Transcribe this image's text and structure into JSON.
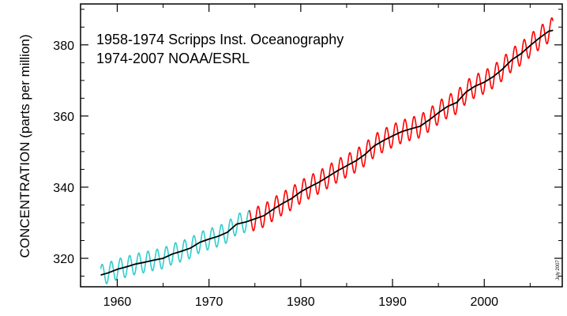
{
  "chart_data": {
    "type": "line",
    "ylabel": "CONCENTRATION (parts per million)",
    "xlabel": "",
    "xlim": [
      1956,
      2008.5
    ],
    "ylim": [
      312,
      391.5
    ],
    "x_ticks": [
      1960,
      1970,
      1980,
      1990,
      2000
    ],
    "x_tick_labels": [
      "1960",
      "1970",
      "1980",
      "1990",
      "2000"
    ],
    "y_ticks": [
      320,
      340,
      360,
      380
    ],
    "y_tick_labels": [
      "320",
      "340",
      "360",
      "380"
    ],
    "annotations": [
      "1958-1974 Scripps Inst. Oceanography",
      "1974-2007 NOAA/ESRL"
    ],
    "stamp": "July 2007",
    "grid": false,
    "series": [
      {
        "color": "#33cccc",
        "kind": "monthly seasonal cycle",
        "x_range": [
          1958.2,
          1974.4
        ],
        "x": [
          1958.2,
          1959.0,
          1960.0,
          1961.0,
          1962.0,
          1963.0,
          1964.0,
          1965.0,
          1966.0,
          1967.0,
          1968.0,
          1969.0,
          1970.0,
          1971.0,
          1972.0,
          1973.0,
          1974.0,
          1974.4
        ],
        "y": [
          315.3,
          315.9,
          316.9,
          317.6,
          318.4,
          318.9,
          319.5,
          320.0,
          321.2,
          322.0,
          322.9,
          324.5,
          325.4,
          326.2,
          327.3,
          329.6,
          330.2,
          330.5
        ],
        "seasonal_amplitude": 2.9
      },
      {
        "color": "#ff0000",
        "kind": "monthly seasonal cycle",
        "x_range": [
          1974.4,
          2007.5
        ],
        "x": [
          1974.4,
          1975.0,
          1976.0,
          1977.0,
          1978.0,
          1979.0,
          1980.0,
          1981.0,
          1982.0,
          1983.0,
          1984.0,
          1985.0,
          1986.0,
          1987.0,
          1988.0,
          1989.0,
          1990.0,
          1991.0,
          1992.0,
          1993.0,
          1994.0,
          1995.0,
          1996.0,
          1997.0,
          1998.0,
          1999.0,
          2000.0,
          2001.0,
          2002.0,
          2003.0,
          2004.0,
          2005.0,
          2006.0,
          2007.0,
          2007.5
        ],
        "y": [
          330.5,
          331.1,
          332.0,
          333.8,
          335.4,
          336.8,
          338.7,
          340.1,
          341.4,
          343.0,
          344.6,
          346.0,
          347.4,
          349.2,
          351.6,
          353.1,
          354.4,
          355.6,
          356.4,
          357.1,
          358.9,
          360.9,
          362.7,
          363.8,
          366.7,
          368.4,
          369.5,
          371.1,
          373.2,
          375.8,
          377.5,
          379.8,
          381.9,
          383.8,
          384.6
        ],
        "seasonal_amplitude": 3.2
      },
      {
        "color": "#000000",
        "kind": "annual average",
        "x": [
          1958.2,
          1959.0,
          1960.0,
          1961.0,
          1962.0,
          1963.0,
          1964.0,
          1965.0,
          1966.0,
          1967.0,
          1968.0,
          1969.0,
          1970.0,
          1971.0,
          1972.0,
          1973.0,
          1974.0,
          1975.0,
          1976.0,
          1977.0,
          1978.0,
          1979.0,
          1980.0,
          1981.0,
          1982.0,
          1983.0,
          1984.0,
          1985.0,
          1986.0,
          1987.0,
          1988.0,
          1989.0,
          1990.0,
          1991.0,
          1992.0,
          1993.0,
          1994.0,
          1995.0,
          1996.0,
          1997.0,
          1998.0,
          1999.0,
          2000.0,
          2001.0,
          2002.0,
          2003.0,
          2004.0,
          2005.0,
          2006.0,
          2007.0,
          2007.5
        ],
        "y": [
          315.3,
          315.9,
          316.9,
          317.6,
          318.4,
          318.9,
          319.5,
          320.0,
          321.2,
          322.0,
          322.9,
          324.5,
          325.4,
          326.2,
          327.3,
          329.6,
          330.2,
          331.1,
          332.0,
          333.8,
          335.4,
          336.8,
          338.7,
          340.1,
          341.4,
          343.0,
          344.6,
          346.0,
          347.4,
          349.2,
          351.6,
          353.1,
          354.4,
          355.6,
          356.4,
          357.1,
          358.9,
          360.9,
          362.7,
          363.8,
          366.7,
          368.4,
          369.5,
          371.1,
          373.2,
          375.8,
          377.5,
          379.8,
          381.9,
          383.8,
          384.1
        ]
      }
    ]
  }
}
